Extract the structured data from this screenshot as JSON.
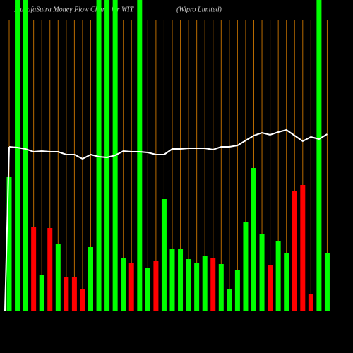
{
  "chart_data": {
    "type": "bar",
    "title": "MunafaSutra  Money Flow Charts for WIT",
    "subtitle": "(Wipro  Limited)",
    "categories": [
      null,
      null,
      null,
      null,
      null,
      null,
      null,
      null,
      null,
      null,
      null,
      null,
      null,
      null,
      null,
      null,
      null,
      null,
      null,
      null,
      null,
      null,
      null,
      null,
      null,
      null,
      null,
      null,
      null,
      null,
      null,
      null,
      null,
      null,
      null,
      null,
      null,
      null,
      null,
      null
    ],
    "ylim": [
      0,
      440
    ],
    "grid": true,
    "grid_color": "#b86a00",
    "background": "#000000",
    "bars": {
      "values": [
        190,
        440,
        440,
        119,
        50,
        117,
        95,
        47,
        47,
        30,
        90,
        440,
        440,
        440,
        74,
        67,
        440,
        61,
        71,
        158,
        87,
        88,
        73,
        67,
        78,
        75,
        66,
        30,
        58,
        125,
        202,
        109,
        64,
        99,
        81,
        169,
        178,
        23,
        440,
        81
      ],
      "colors": [
        "#00ff00",
        "#00ff00",
        "#00ff00",
        "#ff0000",
        "#00ff00",
        "#ff0000",
        "#00ff00",
        "#ff0000",
        "#ff0000",
        "#ff0000",
        "#00ff00",
        "#00ff00",
        "#00ff00",
        "#00ff00",
        "#00ff00",
        "#ff0000",
        "#00ff00",
        "#00ff00",
        "#ff0000",
        "#00ff00",
        "#00ff00",
        "#00ff00",
        "#00ff00",
        "#00ff00",
        "#00ff00",
        "#ff0000",
        "#00ff00",
        "#00ff00",
        "#00ff00",
        "#00ff00",
        "#00ff00",
        "#00ff00",
        "#ff0000",
        "#00ff00",
        "#00ff00",
        "#ff0000",
        "#ff0000",
        "#ff0000",
        "#00ff00",
        "#00ff00"
      ]
    },
    "line": {
      "color": "#ffffff",
      "values": [
        232,
        231,
        229,
        225,
        226,
        225,
        225,
        221,
        221,
        215,
        221,
        218,
        217,
        220,
        226,
        225,
        225,
        224,
        221,
        221,
        229,
        229,
        230,
        230,
        230,
        228,
        232,
        232,
        234,
        241,
        248,
        252,
        249,
        253,
        256,
        248,
        240,
        246,
        243,
        250
      ]
    }
  }
}
